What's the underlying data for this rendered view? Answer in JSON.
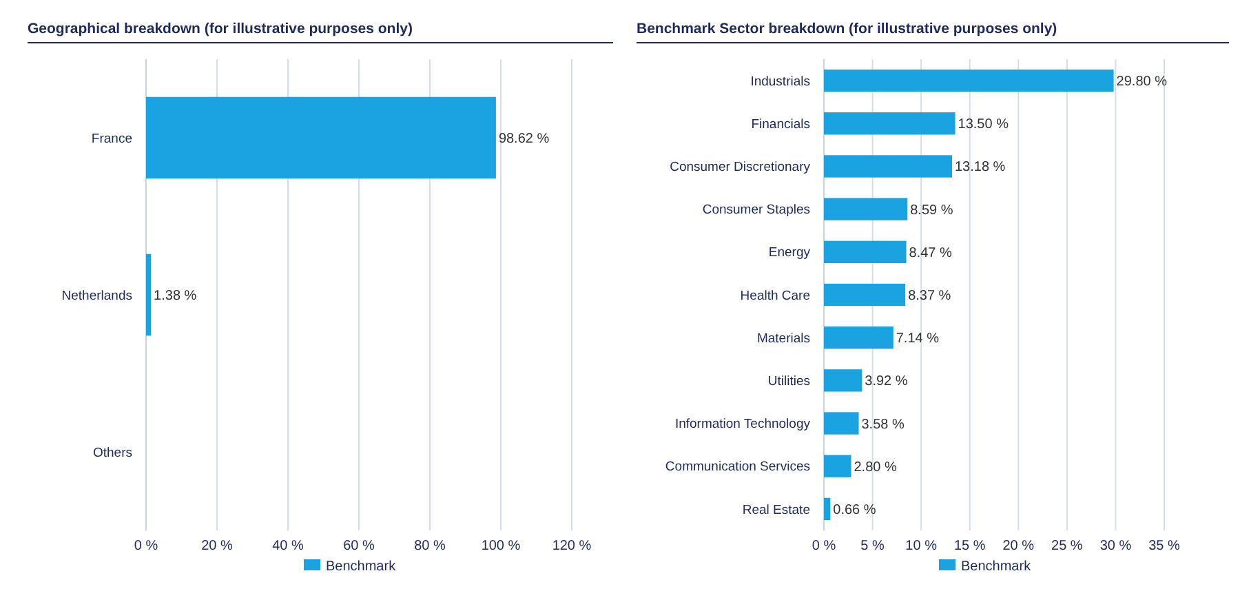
{
  "chart_data": [
    {
      "type": "bar",
      "orientation": "horizontal",
      "title": "Geographical breakdown (for illustrative purposes only)",
      "categories": [
        "France",
        "Netherlands",
        "Others"
      ],
      "series": [
        {
          "name": "Benchmark",
          "color": "#1aa3e0",
          "values": [
            98.62,
            1.38,
            null
          ],
          "value_labels": [
            "98.62 %",
            "1.38 %",
            null
          ]
        }
      ],
      "xlim": [
        0,
        120
      ],
      "xticks": [
        {
          "value": 0,
          "label": "0 %"
        },
        {
          "value": 20,
          "label": "20 %"
        },
        {
          "value": 40,
          "label": "40 %"
        },
        {
          "value": 60,
          "label": "60 %"
        },
        {
          "value": 80,
          "label": "80 %"
        },
        {
          "value": 100,
          "label": "100 %"
        },
        {
          "value": 120,
          "label": "120 %"
        }
      ],
      "grid": "x",
      "legend": "bottom"
    },
    {
      "type": "bar",
      "orientation": "horizontal",
      "title": "Benchmark Sector breakdown (for illustrative purposes only)",
      "categories": [
        "Industrials",
        "Financials",
        "Consumer Discretionary",
        "Consumer Staples",
        "Energy",
        "Health Care",
        "Materials",
        "Utilities",
        "Information Technology",
        "Communication Services",
        "Real Estate"
      ],
      "series": [
        {
          "name": "Benchmark",
          "color": "#1aa3e0",
          "values": [
            29.8,
            13.5,
            13.18,
            8.59,
            8.47,
            8.37,
            7.14,
            3.92,
            3.58,
            2.8,
            0.66
          ],
          "value_labels": [
            "29.80 %",
            "13.50 %",
            "13.18 %",
            "8.59 %",
            "8.47 %",
            "8.37 %",
            "7.14 %",
            "3.92 %",
            "3.58 %",
            "2.80 %",
            "0.66 %"
          ]
        }
      ],
      "xlim": [
        0,
        35
      ],
      "xticks": [
        {
          "value": 0,
          "label": "0 %"
        },
        {
          "value": 5,
          "label": "5 %"
        },
        {
          "value": 10,
          "label": "10 %"
        },
        {
          "value": 15,
          "label": "15 %"
        },
        {
          "value": 20,
          "label": "20 %"
        },
        {
          "value": 25,
          "label": "25 %"
        },
        {
          "value": 30,
          "label": "30 %"
        },
        {
          "value": 35,
          "label": "35 %"
        }
      ],
      "grid": "x",
      "legend": "bottom"
    }
  ]
}
